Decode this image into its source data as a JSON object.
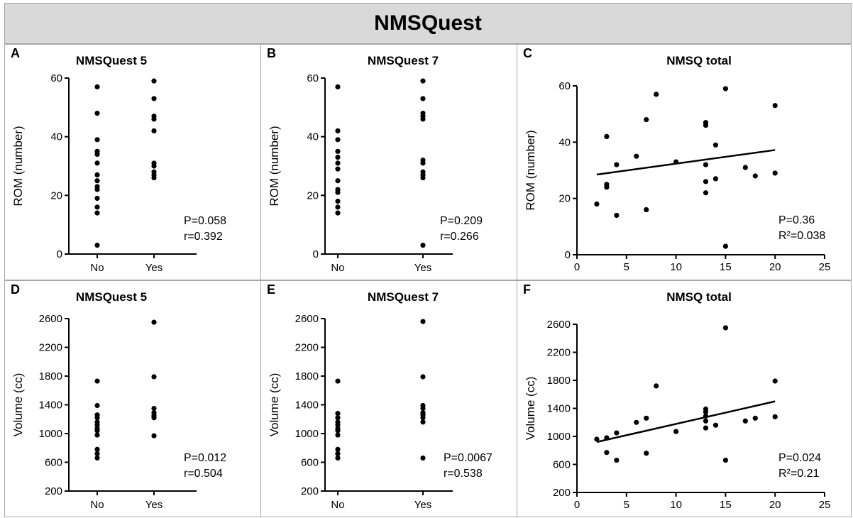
{
  "header": {
    "title": "NMSQuest"
  },
  "chart_data": [
    {
      "panel": "A",
      "type": "scatter",
      "title": "NMSQuest 5",
      "ylabel": "ROM (number)",
      "categories": [
        "No",
        "Yes"
      ],
      "ylim": [
        0,
        60
      ],
      "yticks": [
        "0",
        "20",
        "40",
        "60"
      ],
      "groups": [
        {
          "category": "No",
          "values": [
            57,
            48,
            39,
            35,
            34,
            31,
            27,
            25,
            23,
            22,
            19,
            16,
            14,
            3
          ]
        },
        {
          "category": "Yes",
          "values": [
            59,
            53,
            47,
            46,
            42,
            31,
            30,
            28,
            27,
            26
          ]
        }
      ],
      "stats": [
        "P=0.058",
        "r=0.392"
      ]
    },
    {
      "panel": "B",
      "type": "scatter",
      "title": "NMSQuest 7",
      "ylabel": "ROM (number)",
      "categories": [
        "No",
        "Yes"
      ],
      "ylim": [
        0,
        60
      ],
      "yticks": [
        "0",
        "20",
        "40",
        "60"
      ],
      "groups": [
        {
          "category": "No",
          "values": [
            57,
            42,
            39,
            35,
            33,
            31,
            29,
            25,
            22,
            21,
            18,
            16,
            14
          ]
        },
        {
          "category": "Yes",
          "values": [
            59,
            53,
            48,
            47,
            46,
            32,
            31,
            28,
            27,
            26,
            3
          ]
        }
      ],
      "stats": [
        "P=0.209",
        "r=0.266"
      ]
    },
    {
      "panel": "C",
      "type": "scatter",
      "title": "NMSQ total",
      "ylabel": "ROM (number)",
      "xlim": [
        0,
        25
      ],
      "ylim": [
        0,
        60
      ],
      "xticks": [
        "0",
        "5",
        "10",
        "15",
        "20",
        "25"
      ],
      "yticks": [
        "0",
        "20",
        "40",
        "60"
      ],
      "x": [
        2,
        3,
        3,
        3,
        4,
        4,
        6,
        7,
        7,
        8,
        10,
        13,
        13,
        13,
        13,
        13,
        14,
        14,
        15,
        15,
        17,
        18,
        20,
        20
      ],
      "y": [
        18,
        42,
        25,
        24,
        32,
        14,
        35,
        48,
        16,
        57,
        33,
        47,
        46,
        32,
        26,
        22,
        39,
        27,
        59,
        3,
        31,
        28,
        53,
        29
      ],
      "fit_line": {
        "x": [
          2,
          20
        ],
        "y": [
          28.5,
          37.2
        ]
      },
      "stats": [
        "P=0.36",
        "R²=0.038"
      ]
    },
    {
      "panel": "D",
      "type": "scatter",
      "title": "NMSQuest 5",
      "ylabel": "Volume (cc)",
      "categories": [
        "No",
        "Yes"
      ],
      "ylim": [
        200,
        2600
      ],
      "yticks": [
        "200",
        "600",
        "1000",
        "1400",
        "1800",
        "2200",
        "2600"
      ],
      "groups": [
        {
          "category": "No",
          "values": [
            1730,
            1390,
            1260,
            1220,
            1160,
            1120,
            1070,
            1040,
            980,
            780,
            720,
            660
          ]
        },
        {
          "category": "Yes",
          "values": [
            2550,
            1790,
            1350,
            1290,
            1250,
            1220,
            970
          ]
        }
      ],
      "stats": [
        "P=0.012",
        "r=0.504"
      ]
    },
    {
      "panel": "E",
      "type": "scatter",
      "title": "NMSQuest 7",
      "ylabel": "Volume (cc)",
      "categories": [
        "No",
        "Yes"
      ],
      "ylim": [
        200,
        2600
      ],
      "yticks": [
        "200",
        "600",
        "1000",
        "1400",
        "1800",
        "2200",
        "2600"
      ],
      "groups": [
        {
          "category": "No",
          "values": [
            1730,
            1280,
            1220,
            1160,
            1120,
            1070,
            1040,
            980,
            780,
            720,
            660
          ]
        },
        {
          "category": "Yes",
          "values": [
            2560,
            1790,
            1390,
            1350,
            1290,
            1260,
            1220,
            1160,
            660
          ]
        }
      ],
      "stats": [
        "P=0.0067",
        "r=0.538"
      ]
    },
    {
      "panel": "F",
      "type": "scatter",
      "title": "NMSQ total",
      "ylabel": "Volume (cc)",
      "xlim": [
        0,
        25
      ],
      "ylim": [
        200,
        2600
      ],
      "xticks": [
        "0",
        "5",
        "10",
        "15",
        "20",
        "25"
      ],
      "yticks": [
        "200",
        "600",
        "1000",
        "1400",
        "1800",
        "2200",
        "2600"
      ],
      "x": [
        2,
        3,
        3,
        4,
        4,
        6,
        7,
        7,
        8,
        10,
        13,
        13,
        13,
        13,
        13,
        14,
        15,
        15,
        17,
        18,
        20,
        20
      ],
      "y": [
        960,
        980,
        770,
        1050,
        660,
        1200,
        1260,
        760,
        1720,
        1070,
        1390,
        1350,
        1290,
        1220,
        1120,
        1160,
        2550,
        660,
        1220,
        1260,
        1790,
        1280
      ],
      "fit_line": {
        "x": [
          2,
          20
        ],
        "y": [
          920,
          1500
        ]
      },
      "stats": [
        "P=0.024",
        "R²=0.21"
      ]
    }
  ]
}
